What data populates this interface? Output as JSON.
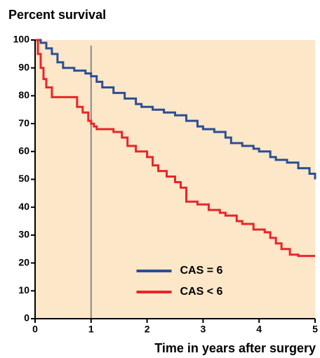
{
  "chart_data": {
    "type": "line",
    "step": "post",
    "title": "Percent survival",
    "x_label": "Time in years after surgery",
    "xlim": [
      0,
      5
    ],
    "ylim": [
      0,
      100
    ],
    "xticks": [
      0,
      1,
      2,
      3,
      4,
      5
    ],
    "yticks": [
      0,
      10,
      20,
      30,
      40,
      50,
      60,
      70,
      80,
      90,
      100
    ],
    "vline": 1,
    "background": "#fce7c8",
    "legend": "lower center",
    "series": [
      {
        "name": "CAS = 6",
        "color": "#2d4f93",
        "x": [
          0,
          0.1,
          0.2,
          0.3,
          0.4,
          0.5,
          0.7,
          0.9,
          1.0,
          1.1,
          1.2,
          1.4,
          1.6,
          1.8,
          1.9,
          2.1,
          2.3,
          2.5,
          2.7,
          2.9,
          3.0,
          3.2,
          3.4,
          3.5,
          3.7,
          3.9,
          4.0,
          4.2,
          4.3,
          4.5,
          4.7,
          4.9,
          5.0
        ],
        "values": [
          100,
          99,
          97,
          95,
          92,
          90,
          89,
          88,
          87,
          85,
          83,
          81,
          79,
          77,
          76,
          75,
          74,
          73,
          71,
          69,
          68,
          67,
          65,
          63,
          62,
          61,
          60,
          58,
          57,
          56,
          54,
          52,
          50
        ]
      },
      {
        "name": "CAS < 6",
        "color": "#e8262a",
        "x": [
          0,
          0.05,
          0.1,
          0.15,
          0.2,
          0.3,
          0.75,
          0.85,
          0.95,
          1.0,
          1.05,
          1.1,
          1.4,
          1.55,
          1.65,
          1.8,
          2.0,
          2.1,
          2.2,
          2.35,
          2.5,
          2.6,
          2.7,
          2.9,
          3.1,
          3.3,
          3.4,
          3.6,
          3.7,
          3.9,
          4.1,
          4.2,
          4.3,
          4.4,
          4.55,
          4.7,
          5.0
        ],
        "values": [
          100,
          95,
          90,
          86,
          83,
          79.5,
          76,
          74,
          71,
          70,
          69,
          68,
          67,
          65,
          62,
          60,
          58,
          55,
          53,
          51,
          49,
          47,
          42,
          41,
          39,
          38,
          37,
          35,
          34,
          32,
          31,
          29,
          27,
          25,
          23,
          22.5,
          22.5
        ]
      }
    ]
  }
}
